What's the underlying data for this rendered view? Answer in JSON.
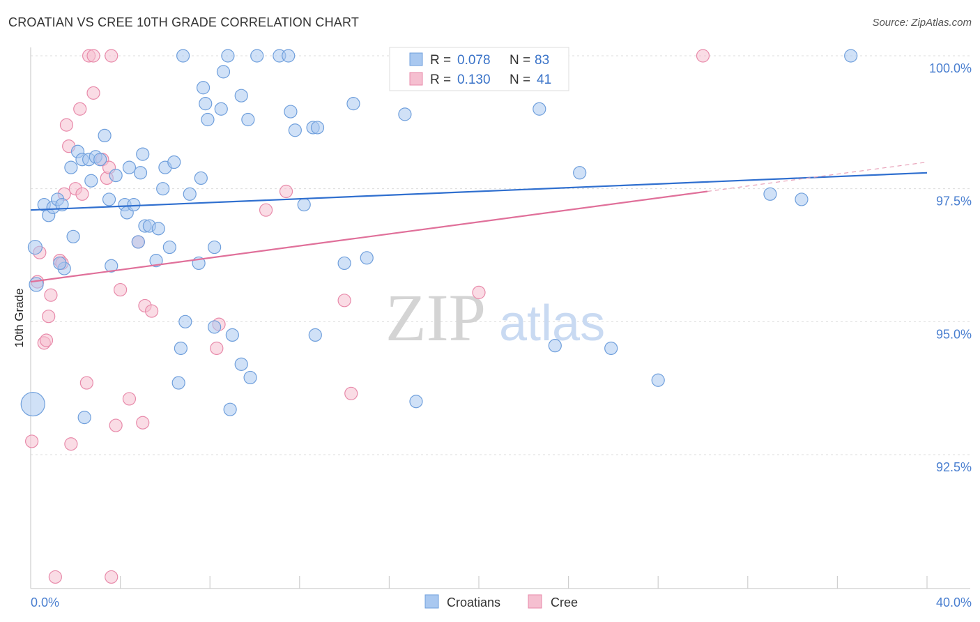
{
  "title": "CROATIAN VS CREE 10TH GRADE CORRELATION CHART",
  "source": "Source: ZipAtlas.com",
  "watermark": {
    "zip": "ZIP",
    "atlas": "atlas"
  },
  "colors": {
    "blue_fill": "#a9c8f0",
    "blue_stroke": "#6f9fdc",
    "blue_line": "#2f6fcf",
    "pink_fill": "#f5bfd0",
    "pink_stroke": "#e88aaa",
    "pink_line": "#e0709a",
    "tick_text": "#4a7fd0",
    "grid": "#d9d9d9"
  },
  "legend_top": [
    {
      "r_label": "R = ",
      "r_value": "0.078",
      "n_label": "N = ",
      "n_value": "83"
    },
    {
      "r_label": "R = ",
      "r_value": "0.130",
      "n_label": "N = ",
      "n_value": "41"
    }
  ],
  "legend_bottom": [
    "Croatians",
    "Cree"
  ],
  "chart_data": {
    "type": "scatter",
    "title": "CROATIAN VS CREE 10TH GRADE CORRELATION CHART",
    "xlabel": "",
    "ylabel": "10th Grade",
    "xlim": [
      0,
      40
    ],
    "ylim": [
      90.2,
      100.2
    ],
    "x_tick_labels": [
      "0.0%",
      "40.0%"
    ],
    "y_ticks": [
      92.5,
      95.0,
      97.5,
      100.0
    ],
    "y_tick_labels": [
      "92.5%",
      "95.0%",
      "97.5%",
      "100.0%"
    ],
    "grid": true,
    "legend_placement": "top-center",
    "series": [
      {
        "name": "Croatians",
        "r": 0.078,
        "n": 83,
        "trend": {
          "x": [
            0,
            40
          ],
          "y": [
            97.1,
            97.8
          ]
        },
        "points": [
          [
            0.2,
            96.4
          ],
          [
            0.25,
            95.7
          ],
          [
            0.6,
            97.2
          ],
          [
            0.8,
            97.0
          ],
          [
            1.0,
            97.15
          ],
          [
            1.2,
            97.3
          ],
          [
            1.4,
            97.2
          ],
          [
            1.5,
            96.0
          ],
          [
            1.8,
            97.9
          ],
          [
            1.9,
            96.6
          ],
          [
            2.1,
            98.2
          ],
          [
            2.3,
            98.05
          ],
          [
            2.6,
            98.05
          ],
          [
            2.7,
            97.65
          ],
          [
            2.9,
            98.1
          ],
          [
            3.1,
            98.05
          ],
          [
            3.3,
            98.5
          ],
          [
            3.5,
            97.3
          ],
          [
            3.6,
            96.05
          ],
          [
            3.8,
            97.75
          ],
          [
            4.2,
            97.2
          ],
          [
            4.3,
            97.05
          ],
          [
            4.4,
            97.9
          ],
          [
            4.6,
            97.2
          ],
          [
            4.8,
            96.5
          ],
          [
            4.9,
            97.8
          ],
          [
            5.0,
            98.15
          ],
          [
            5.1,
            96.8
          ],
          [
            5.3,
            96.8
          ],
          [
            5.6,
            96.15
          ],
          [
            5.7,
            96.75
          ],
          [
            5.9,
            97.5
          ],
          [
            6.0,
            97.9
          ],
          [
            6.2,
            96.4
          ],
          [
            6.4,
            98.0
          ],
          [
            6.6,
            93.85
          ],
          [
            6.7,
            94.5
          ],
          [
            6.8,
            100.0
          ],
          [
            6.9,
            95.0
          ],
          [
            7.1,
            97.4
          ],
          [
            7.5,
            96.1
          ],
          [
            7.6,
            97.7
          ],
          [
            7.7,
            99.4
          ],
          [
            7.8,
            99.1
          ],
          [
            7.9,
            98.8
          ],
          [
            8.2,
            96.4
          ],
          [
            8.2,
            94.9
          ],
          [
            8.5,
            99.0
          ],
          [
            8.6,
            99.7
          ],
          [
            8.8,
            100.0
          ],
          [
            8.9,
            93.35
          ],
          [
            9.0,
            94.75
          ],
          [
            9.4,
            94.2
          ],
          [
            9.4,
            99.25
          ],
          [
            9.7,
            98.8
          ],
          [
            9.8,
            93.95
          ],
          [
            10.1,
            100.0
          ],
          [
            11.1,
            100.0
          ],
          [
            11.5,
            100.0
          ],
          [
            11.6,
            98.95
          ],
          [
            11.8,
            98.6
          ],
          [
            12.2,
            97.2
          ],
          [
            12.6,
            98.65
          ],
          [
            12.7,
            94.75
          ],
          [
            12.8,
            98.65
          ],
          [
            14.0,
            96.1
          ],
          [
            14.4,
            99.1
          ],
          [
            15.0,
            96.2
          ],
          [
            16.7,
            98.9
          ],
          [
            17.2,
            93.5
          ],
          [
            17.9,
            100.0
          ],
          [
            22.4,
            100.0
          ],
          [
            22.7,
            99.0
          ],
          [
            23.4,
            94.55
          ],
          [
            24.5,
            97.8
          ],
          [
            25.9,
            94.5
          ],
          [
            28.0,
            93.9
          ],
          [
            33.0,
            97.4
          ],
          [
            34.4,
            97.3
          ],
          [
            36.6,
            100.0
          ],
          [
            0.1,
            93.45
          ],
          [
            2.4,
            93.2
          ],
          [
            1.3,
            96.1
          ]
        ]
      },
      {
        "name": "Cree",
        "r": 0.13,
        "n": 41,
        "trend": {
          "x": [
            0,
            30.2
          ],
          "y": [
            95.75,
            97.45
          ]
        },
        "trend_dashed": {
          "x": [
            30.2,
            40
          ],
          "y": [
            97.45,
            98.0
          ]
        },
        "points": [
          [
            0.05,
            92.75
          ],
          [
            0.3,
            95.75
          ],
          [
            0.4,
            96.3
          ],
          [
            0.6,
            94.6
          ],
          [
            0.7,
            94.65
          ],
          [
            0.8,
            95.1
          ],
          [
            0.9,
            95.5
          ],
          [
            1.1,
            90.2
          ],
          [
            1.3,
            96.15
          ],
          [
            1.4,
            96.1
          ],
          [
            1.5,
            97.4
          ],
          [
            1.6,
            98.7
          ],
          [
            1.7,
            98.3
          ],
          [
            1.8,
            92.7
          ],
          [
            2.0,
            97.5
          ],
          [
            2.2,
            99.0
          ],
          [
            2.3,
            97.4
          ],
          [
            2.5,
            93.85
          ],
          [
            2.6,
            100.0
          ],
          [
            2.8,
            100.0
          ],
          [
            2.8,
            99.3
          ],
          [
            3.2,
            98.05
          ],
          [
            3.4,
            97.7
          ],
          [
            3.5,
            97.9
          ],
          [
            3.6,
            100.0
          ],
          [
            3.6,
            90.2
          ],
          [
            3.8,
            93.05
          ],
          [
            4.0,
            95.6
          ],
          [
            4.4,
            93.55
          ],
          [
            4.8,
            96.5
          ],
          [
            5.0,
            93.1
          ],
          [
            5.1,
            95.3
          ],
          [
            5.4,
            95.2
          ],
          [
            8.3,
            94.5
          ],
          [
            8.4,
            94.95
          ],
          [
            10.5,
            97.1
          ],
          [
            11.4,
            97.45
          ],
          [
            14.0,
            95.4
          ],
          [
            14.3,
            93.65
          ],
          [
            20.0,
            95.55
          ],
          [
            30.0,
            100.0
          ]
        ]
      }
    ]
  }
}
